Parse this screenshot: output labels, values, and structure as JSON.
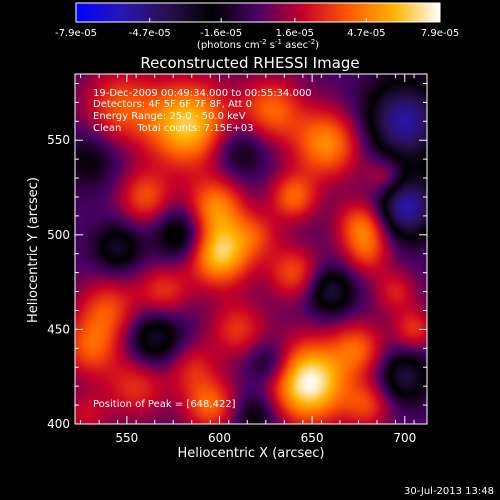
{
  "chart_data": {
    "type": "heatmap",
    "title": "Reconstructed RHESSI Image",
    "xlabel": "Heliocentric X (arcsec)",
    "ylabel": "Heliocentric Y (arcsec)",
    "xlim": [
      522,
      712
    ],
    "ylim": [
      400,
      585
    ],
    "x_ticks": [
      550,
      600,
      650,
      700
    ],
    "y_ticks": [
      400,
      450,
      500,
      550
    ],
    "colorbar": {
      "range": [
        -7.9e-05,
        7.9e-05
      ],
      "tick_labels": [
        "-7.9e-05",
        "-4.7e-05",
        "-1.6e-05",
        "1.6e-05",
        "4.7e-05",
        "7.9e-05"
      ],
      "unit_main": "(photons cm",
      "unit_sup1": "-2",
      "unit_mid": " s",
      "unit_sup2": "-1",
      "unit_tail": " asec",
      "unit_sup3": "-2",
      "unit_close": ")",
      "colormap": [
        "#0000ff",
        "#2a16b4",
        "#281050",
        "#000000",
        "#4a0064",
        "#c80028",
        "#ff5a00",
        "#ffb400",
        "#ffffff"
      ]
    },
    "annotations": [
      "19-Dec-2009 00:49:34.000 to 00:55:34.000",
      "Detectors: 4F 5F 6F 7F 8F, Att 0",
      "Energy Range: 25.0 - 50.0 keV",
      "Clean     Total counts: 7.15E+03"
    ],
    "peak_label": "Position of Peak = [648,422]",
    "peak": [
      648,
      422
    ],
    "blobs": [
      {
        "x": 583,
        "y": 558,
        "v": 6.5e-05,
        "s": 16
      },
      {
        "x": 546,
        "y": 568,
        "v": 3.5e-05,
        "s": 14
      },
      {
        "x": 628,
        "y": 566,
        "v": 4e-05,
        "s": 12
      },
      {
        "x": 658,
        "y": 548,
        "v": 5e-05,
        "s": 13
      },
      {
        "x": 530,
        "y": 540,
        "v": -2e-05,
        "s": 11
      },
      {
        "x": 610,
        "y": 545,
        "v": -2.5e-05,
        "s": 11
      },
      {
        "x": 700,
        "y": 560,
        "v": -5.5e-05,
        "s": 15
      },
      {
        "x": 700,
        "y": 515,
        "v": -6e-05,
        "s": 12
      },
      {
        "x": 690,
        "y": 530,
        "v": 3e-05,
        "s": 8
      },
      {
        "x": 678,
        "y": 505,
        "v": 4.5e-05,
        "s": 10
      },
      {
        "x": 640,
        "y": 520,
        "v": 4e-05,
        "s": 9
      },
      {
        "x": 598,
        "y": 515,
        "v": 4.5e-05,
        "s": 11
      },
      {
        "x": 560,
        "y": 520,
        "v": 3.5e-05,
        "s": 10
      },
      {
        "x": 620,
        "y": 500,
        "v": 2.5e-05,
        "s": 9
      },
      {
        "x": 580,
        "y": 500,
        "v": -3.5e-05,
        "s": 10
      },
      {
        "x": 640,
        "y": 480,
        "v": 3.5e-05,
        "s": 10
      },
      {
        "x": 600,
        "y": 490,
        "v": 6.5e-05,
        "s": 12
      },
      {
        "x": 545,
        "y": 493,
        "v": -3e-05,
        "s": 9
      },
      {
        "x": 570,
        "y": 470,
        "v": 3e-05,
        "s": 10
      },
      {
        "x": 540,
        "y": 460,
        "v": 3.5e-05,
        "s": 12
      },
      {
        "x": 660,
        "y": 470,
        "v": -3.5e-05,
        "s": 9
      },
      {
        "x": 680,
        "y": 490,
        "v": 2.5e-05,
        "s": 9
      },
      {
        "x": 695,
        "y": 470,
        "v": 2.5e-05,
        "s": 8
      },
      {
        "x": 610,
        "y": 450,
        "v": 3e-05,
        "s": 11
      },
      {
        "x": 530,
        "y": 440,
        "v": 3.5e-05,
        "s": 11
      },
      {
        "x": 565,
        "y": 445,
        "v": -3.5e-05,
        "s": 11
      },
      {
        "x": 555,
        "y": 420,
        "v": 3e-05,
        "s": 12
      },
      {
        "x": 585,
        "y": 430,
        "v": 2.5e-05,
        "s": 10
      },
      {
        "x": 595,
        "y": 410,
        "v": 4e-05,
        "s": 10
      },
      {
        "x": 648,
        "y": 422,
        "v": 7.9e-05,
        "s": 15
      },
      {
        "x": 675,
        "y": 440,
        "v": 3.5e-05,
        "s": 10
      },
      {
        "x": 700,
        "y": 425,
        "v": -3.5e-05,
        "s": 10
      },
      {
        "x": 680,
        "y": 410,
        "v": 3e-05,
        "s": 9
      },
      {
        "x": 627,
        "y": 432,
        "v": -3e-05,
        "s": 9
      },
      {
        "x": 620,
        "y": 405,
        "v": -2.5e-05,
        "s": 9
      },
      {
        "x": 528,
        "y": 405,
        "v": 2e-05,
        "s": 9
      },
      {
        "x": 705,
        "y": 450,
        "v": 3e-05,
        "s": 8
      }
    ]
  },
  "footer": {
    "timestamp": "30-Jul-2013 13:48"
  }
}
